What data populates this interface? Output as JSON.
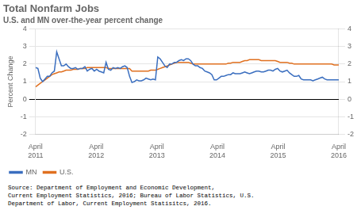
{
  "chart_data": {
    "type": "line",
    "title": "Total Nonfarm Jobs",
    "subtitle": "U.S. and MN over-the-year percent change",
    "ylabel": "Percent Change",
    "annotations": [
      "Source: Department of Employment and Economic Development,\nCurrent Employment Statistics, 2016; Bureau of Labor Statistics, U.S.\nDepartment of Labor, Current Employment Statisitcs, 2016."
    ],
    "x": [
      0,
      0.4651,
      0.9302,
      1.3953,
      1.8605,
      2.3256,
      2.7907,
      3.2558,
      3.7209,
      4.186,
      4.6512,
      5.1163,
      5.5814,
      6.0465,
      6.5116,
      6.9767,
      7.4419,
      7.907,
      8.3721,
      8.8372,
      9.3023,
      9.7674,
      10.2326,
      10.6977,
      11.1628,
      11.6279,
      12.093,
      12.5581,
      13.0233,
      13.4884,
      13.9535,
      14.4186,
      14.8837,
      15.3488,
      15.814,
      16.2791,
      16.7442,
      17.2093,
      17.6744,
      18.1395,
      18.6047,
      19.0698,
      19.5349,
      20,
      20.4651,
      20.9302,
      21.3953,
      21.8605,
      22.3256,
      22.7907,
      23.2558,
      23.7209,
      24.186,
      24.6512,
      25.1163,
      25.5814,
      26.0465,
      26.5116,
      26.9767,
      27.4419,
      27.907,
      28.3721,
      28.8372,
      29.3023,
      29.7674,
      30.2326,
      30.6977,
      31.1628,
      31.6279,
      32.093,
      32.5581,
      33.0233,
      33.4884,
      33.9535,
      34.4186,
      34.8837,
      35.3488,
      35.814,
      36.2791,
      36.7442,
      37.2093,
      37.6744,
      38.1395,
      38.6047,
      39.0698,
      39.5349,
      40,
      40.4651,
      40.9302,
      41.3953,
      41.8605,
      42.3256,
      42.7907,
      43.2558,
      43.7209,
      44.186,
      44.6512,
      45.1163,
      45.5814,
      46.0465,
      46.5116,
      46.9767,
      47.4419,
      47.907,
      48.3721,
      48.8372,
      49.3023,
      49.7674,
      50.2326,
      50.6977,
      51.1628,
      51.6279,
      52.093,
      52.5581,
      53.0233,
      53.4884,
      53.9535,
      54.4186,
      54.8837,
      55.3488,
      55.814,
      56.2791,
      56.7442,
      57.2093,
      57.6744,
      58.1395,
      58.6047,
      59.0698,
      59.5349,
      60
    ],
    "series": [
      {
        "name": "MN",
        "color": "#3a6ebf",
        "values": [
          1.8,
          1.75,
          1.2,
          1.0,
          1.15,
          1.3,
          1.3,
          1.5,
          1.6,
          2.7,
          2.3,
          1.9,
          1.9,
          2.0,
          1.85,
          1.75,
          1.75,
          1.8,
          1.7,
          1.75,
          1.75,
          1.85,
          1.6,
          1.7,
          1.75,
          1.6,
          1.7,
          1.6,
          1.55,
          1.5,
          2.1,
          1.7,
          1.65,
          1.8,
          1.75,
          1.8,
          1.75,
          1.85,
          1.9,
          1.8,
          1.3,
          0.95,
          1.0,
          1.1,
          1.05,
          1.05,
          1.1,
          1.2,
          1.15,
          1.1,
          1.15,
          1.1,
          2.4,
          2.3,
          2.1,
          1.9,
          1.8,
          2.0,
          2.0,
          2.1,
          2.1,
          2.2,
          2.25,
          2.2,
          2.3,
          2.3,
          2.2,
          2.0,
          1.9,
          1.9,
          1.8,
          1.75,
          1.6,
          1.55,
          1.5,
          1.4,
          1.1,
          1.1,
          1.2,
          1.3,
          1.3,
          1.35,
          1.4,
          1.4,
          1.5,
          1.45,
          1.45,
          1.45,
          1.5,
          1.55,
          1.5,
          1.45,
          1.5,
          1.55,
          1.6,
          1.6,
          1.55,
          1.55,
          1.6,
          1.65,
          1.65,
          1.6,
          1.7,
          1.75,
          1.6,
          1.55,
          1.6,
          1.65,
          1.5,
          1.4,
          1.3,
          1.3,
          1.35,
          1.15,
          1.1,
          1.1,
          1.1,
          1.1,
          1.05,
          1.1,
          1.15,
          1.2,
          1.25,
          1.15,
          1.1,
          1.1,
          1.1,
          1.1,
          1.1,
          1.1
        ]
      },
      {
        "name": "U.S.",
        "color": "#e07020",
        "values": [
          0.7,
          0.8,
          0.9,
          1.0,
          1.1,
          1.2,
          1.3,
          1.4,
          1.45,
          1.5,
          1.55,
          1.55,
          1.6,
          1.65,
          1.65,
          1.65,
          1.7,
          1.7,
          1.7,
          1.75,
          1.75,
          1.75,
          1.8,
          1.8,
          1.8,
          1.8,
          1.8,
          1.8,
          1.8,
          1.8,
          1.8,
          1.75,
          1.75,
          1.75,
          1.75,
          1.75,
          1.75,
          1.75,
          1.75,
          1.75,
          1.75,
          1.6,
          1.6,
          1.6,
          1.6,
          1.6,
          1.6,
          1.6,
          1.6,
          1.65,
          1.65,
          1.65,
          1.7,
          1.75,
          1.8,
          1.85,
          1.9,
          1.95,
          2.0,
          2.05,
          2.1,
          2.1,
          2.1,
          2.1,
          2.1,
          2.1,
          2.05,
          2.0,
          2.0,
          2.0,
          2.0,
          2.0,
          2.0,
          2.0,
          2.0,
          2.0,
          2.0,
          2.0,
          2.0,
          2.0,
          2.0,
          2.0,
          2.05,
          2.05,
          2.1,
          2.1,
          2.1,
          2.1,
          2.15,
          2.2,
          2.2,
          2.25,
          2.25,
          2.25,
          2.25,
          2.25,
          2.2,
          2.2,
          2.2,
          2.2,
          2.2,
          2.2,
          2.2,
          2.15,
          2.1,
          2.1,
          2.1,
          2.1,
          2.05,
          2.05,
          2.0,
          2.0,
          2.0,
          2.0,
          2.0,
          2.0,
          2.0,
          2.0,
          2.0,
          2.0,
          2.0,
          2.0,
          2.0,
          2.0,
          2.0,
          2.0,
          2.0,
          1.95,
          1.95,
          1.95
        ]
      }
    ],
    "xlim": [
      0,
      60
    ],
    "xticks": [
      {
        "value": 0,
        "label": "April\n2011"
      },
      {
        "value": 12,
        "label": "April\n2012"
      },
      {
        "value": 24,
        "label": "April\n2013"
      },
      {
        "value": 36,
        "label": "April\n2014"
      },
      {
        "value": 48,
        "label": "April\n2015"
      },
      {
        "value": 60,
        "label": "April\n2016"
      }
    ],
    "ylim": [
      -2,
      4
    ],
    "yticks": [
      -2,
      -1,
      0,
      1,
      2,
      3,
      4
    ],
    "y2lim": [
      -2,
      4
    ],
    "y2ticks": [
      -2,
      -1,
      0,
      1,
      2,
      3,
      4
    ],
    "grid": true,
    "legend": "lower left"
  }
}
